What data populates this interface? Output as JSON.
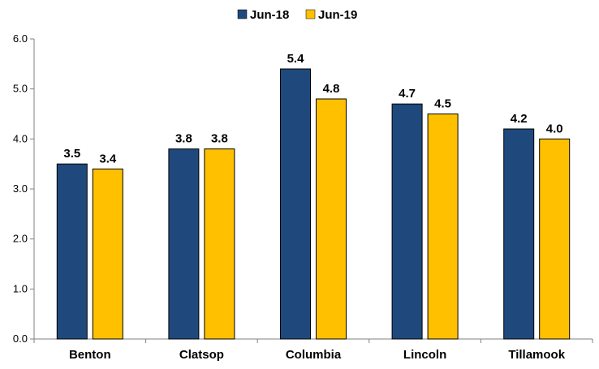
{
  "chart_data": {
    "type": "bar",
    "categories": [
      "Benton",
      "Clatsop",
      "Columbia",
      "Lincoln",
      "Tillamook"
    ],
    "series": [
      {
        "name": "Jun-18",
        "values": [
          3.5,
          3.8,
          5.4,
          4.7,
          4.2
        ],
        "labels": [
          "3.5",
          "3.8",
          "5.4",
          "4.7",
          "4.2"
        ],
        "color": "#1F497D"
      },
      {
        "name": "Jun-19",
        "values": [
          3.4,
          3.8,
          4.8,
          4.5,
          4.0
        ],
        "labels": [
          "3.4",
          "3.8",
          "4.8",
          "4.5",
          "4.0"
        ],
        "color": "#FFC000"
      }
    ],
    "yticks": [
      "0.0",
      "1.0",
      "2.0",
      "3.0",
      "4.0",
      "5.0",
      "6.0"
    ],
    "ylim": [
      0,
      6
    ],
    "grid": false,
    "legend_position": "top-center"
  }
}
